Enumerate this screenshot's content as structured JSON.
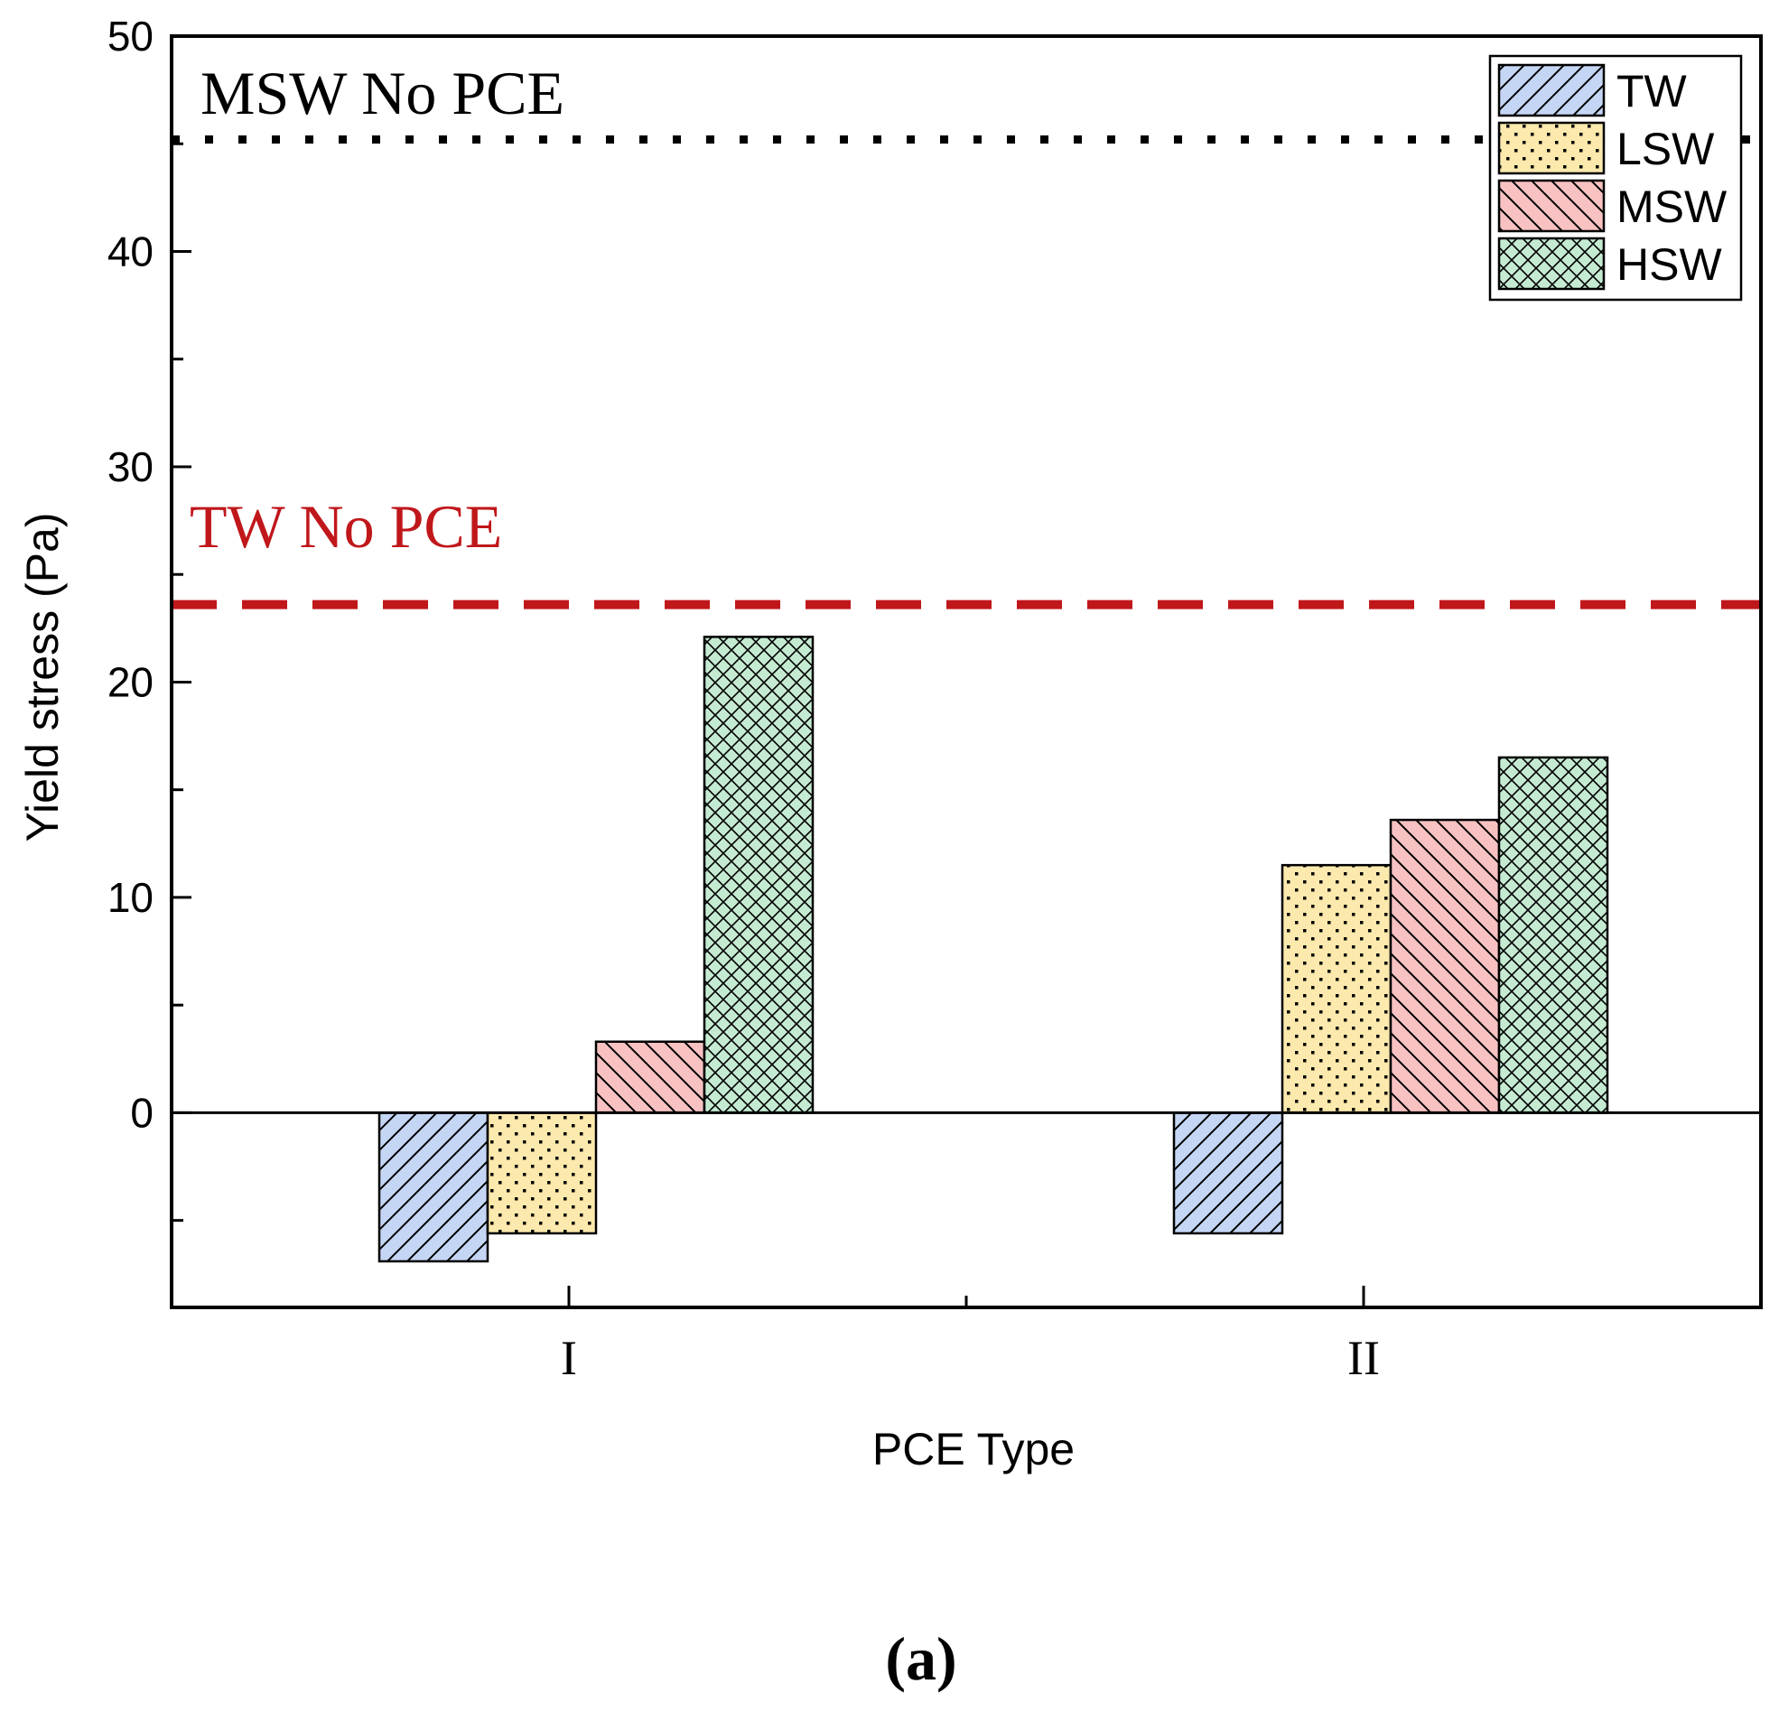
{
  "chart_data": {
    "type": "bar",
    "title": "",
    "xlabel": "PCE Type",
    "ylabel": "Yield stress (Pa)",
    "ylim": [
      -9,
      50
    ],
    "yticks": [
      0,
      10,
      20,
      30,
      40,
      50
    ],
    "categories": [
      "I",
      "II"
    ],
    "series": [
      {
        "name": "TW",
        "values": [
          -6.9,
          -5.6
        ],
        "fill": "#c5d6f5",
        "pattern": "diag-up"
      },
      {
        "name": "LSW",
        "values": [
          -5.6,
          11.5
        ],
        "fill": "#fbe9ad",
        "pattern": "dots"
      },
      {
        "name": "MSW",
        "values": [
          3.3,
          13.6
        ],
        "fill": "#f8c2c2",
        "pattern": "diag-down"
      },
      {
        "name": "HSW",
        "values": [
          22.1,
          16.5
        ],
        "fill": "#c5ead2",
        "pattern": "crosshatch"
      }
    ],
    "reference_lines": [
      {
        "label": "MSW No PCE",
        "value": 45.2,
        "color": "#000000",
        "style": "dotted"
      },
      {
        "label": "TW No PCE",
        "value": 23.6,
        "color": "#c0171b",
        "style": "dashed"
      }
    ],
    "legend_position": "top-right",
    "panel_label": "(a)"
  }
}
